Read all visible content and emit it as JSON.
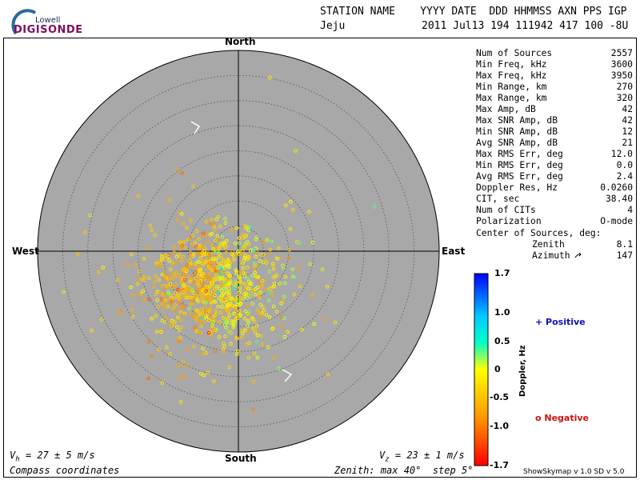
{
  "logo": {
    "brand": "Lowell",
    "product": "DIGISONDE"
  },
  "header": {
    "label_row": "STATION NAME    YYYY DATE  DDD HHMMSS AXN PPS IGP",
    "station": "Jeju",
    "values_row": "2011 Jul13 194 111942 417 100 -8U"
  },
  "compass": {
    "north": "North",
    "south": "South",
    "east": "East",
    "west": "West"
  },
  "stats": [
    {
      "label": "Num of Sources",
      "value": "2557"
    },
    {
      "label": "Min Freq, kHz",
      "value": "3600"
    },
    {
      "label": "Max Freq, kHz",
      "value": "3950"
    },
    {
      "label": "Min Range, km",
      "value": "270"
    },
    {
      "label": "Max Range, km",
      "value": "320"
    },
    {
      "label": "Max Amp, dB",
      "value": "42"
    },
    {
      "label": "Max SNR Amp, dB",
      "value": "42"
    },
    {
      "label": "Min SNR Amp, dB",
      "value": "12"
    },
    {
      "label": "Avg SNR Amp, dB",
      "value": "21"
    },
    {
      "label": "Max RMS Err, deg",
      "value": "12.0"
    },
    {
      "label": "Min RMS Err, deg",
      "value": "0.0"
    },
    {
      "label": "Avg RMS Err, deg",
      "value": "2.4"
    },
    {
      "label": "Doppler Res, Hz",
      "value": "0.0260"
    },
    {
      "label": "CIT, sec",
      "value": "38.40"
    },
    {
      "label": "Num of CITs",
      "value": "4"
    },
    {
      "label": "Polarization",
      "value": "O-mode"
    }
  ],
  "center": {
    "title": "Center of Sources, deg:",
    "zenith_label": "Zenith",
    "zenith_value": "8.1",
    "azimuth_label": "Azimuth",
    "azimuth_value": "147"
  },
  "colorbar": {
    "ticks": [
      "1.7",
      "1.0",
      "0.5",
      "0",
      "-0.5",
      "-1.0",
      "-1.7"
    ],
    "title": "Doppler, Hz",
    "positive": "+ Positive",
    "negative": "o Negative",
    "colors": [
      "#0000ff",
      "#00c8ff",
      "#00ffc8",
      "#ffff00",
      "#ff9600",
      "#ff0000"
    ]
  },
  "footer": {
    "vh": "V",
    "vh_sub": "h",
    "vh_text": " = 27 ± 5 m/s",
    "vz": "V",
    "vz_sub": "z",
    "vz_text": " = 23 ± 1 m/s",
    "coords": "Compass coordinates",
    "zenith": "Zenith: max 40°  step 5°",
    "version": "ShowSkymap v 1.0   SD v 5.0"
  },
  "chart_data": {
    "type": "scatter",
    "projection": "polar-skymap",
    "zenith_max_deg": 40,
    "zenith_step_deg": 5,
    "num_points": 2557,
    "center": {
      "zenith_deg": 8.1,
      "azimuth_deg": 147
    },
    "spread_deg": {
      "x": 6.5,
      "y": 5.5
    },
    "doppler_range_hz": [
      -1.7,
      1.7
    ],
    "doppler_mean_hz": -0.35
  }
}
